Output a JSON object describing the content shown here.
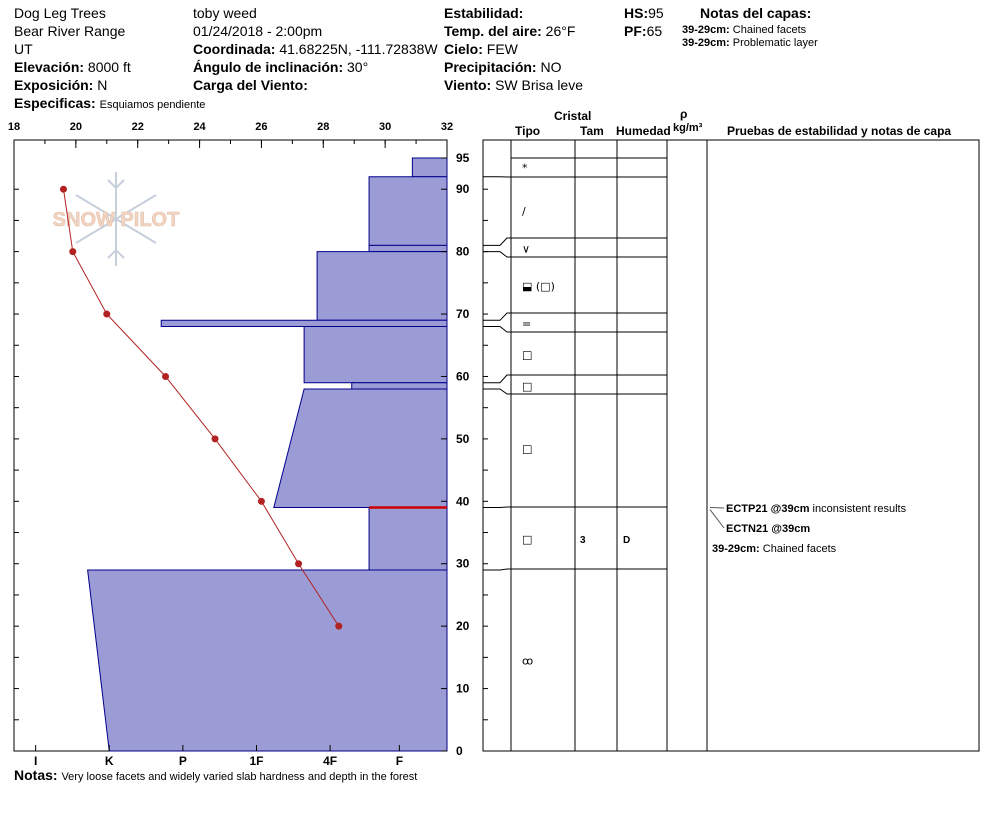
{
  "header": {
    "location": "Dog Leg Trees",
    "range": "Bear River Range",
    "state": "UT",
    "elevation_label": "Elevación:",
    "elevation_value": "8000 ft",
    "aspect_label": "Exposición:",
    "aspect_value": "N",
    "specifics_label": "Especificas:",
    "specifics_value": "Esquiamos pendiente",
    "observer": "toby weed",
    "datetime": "01/24/2018 - 2:00pm",
    "coord_label": "Coordinada:",
    "coord_value": "41.68225N, -111.72838W",
    "incline_label": "Ángulo de inclinación:",
    "incline_value": "30°",
    "wind_load_label": "Carga del Viento:",
    "wind_load_value": "",
    "stability_label": "Estabilidad:",
    "stability_value": "",
    "air_temp_label": "Temp. del aire:",
    "air_temp_value": "26°F",
    "sky_label": "Cielo:",
    "sky_value": "FEW",
    "precip_label": "Precipitación:",
    "precip_value": "NO",
    "wind_label": "Viento:",
    "wind_value": "SW Brisa leve",
    "hs_label": "HS:",
    "hs_value": "95",
    "pf_label": "PF:",
    "pf_value": "65",
    "layer_notes_title": "Notas del capas:",
    "layer_notes": [
      {
        "range": "39-29cm:",
        "text": "Chained facets"
      },
      {
        "range": "39-29cm:",
        "text": "Problematic layer"
      }
    ]
  },
  "logo_text": "SNOW PILOT",
  "columns": {
    "cristal": "Cristal",
    "tipo": "Tipo",
    "tam": "Tam",
    "humedad": "Humedad",
    "rho": "ρ",
    "density_unit": "kg/m³",
    "tests": "Pruebas de estabilidad y notas de capa"
  },
  "notes_label": "Notas:",
  "notes_value": "Very loose facets and widely varied slab hardness and depth in the forest",
  "colors": {
    "hardness_fill": "#9b9bd6",
    "hardness_stroke": "#00008b",
    "temp_line": "#b22222",
    "weak_layer": "#cc0000",
    "test_arrow": "#555555"
  },
  "chart_data": {
    "type": "snow-profile",
    "temp_axis": {
      "ticks": [
        "18",
        "20",
        "22",
        "24",
        "26",
        "28",
        "30",
        "32"
      ],
      "range": [
        18,
        32
      ]
    },
    "depth_axis": {
      "ticks": [
        "0",
        "10",
        "20",
        "30",
        "40",
        "50",
        "60",
        "70",
        "80",
        "90",
        "95"
      ],
      "range": [
        0,
        95
      ]
    },
    "hardness_axis": {
      "ticks": [
        "I",
        "K",
        "P",
        "1F",
        "4F",
        "F"
      ]
    },
    "temperature_profile": [
      {
        "depth": 90,
        "temp": 19.6
      },
      {
        "depth": 80,
        "temp": 19.9
      },
      {
        "depth": 70,
        "temp": 21.0
      },
      {
        "depth": 60,
        "temp": 22.9
      },
      {
        "depth": 50,
        "temp": 24.5
      },
      {
        "depth": 40,
        "temp": 26.0
      },
      {
        "depth": 30,
        "temp": 27.2
      },
      {
        "depth": 20,
        "temp": 28.5
      }
    ],
    "hardness_layers": [
      {
        "top": 95,
        "bottom": 92,
        "h_top": 0.92,
        "h_bottom": 0.92
      },
      {
        "top": 92,
        "bottom": 81,
        "h_top": 0.82,
        "h_bottom": 0.82
      },
      {
        "top": 81,
        "bottom": 80,
        "h_top": 0.82,
        "h_bottom": 0.82
      },
      {
        "top": 80,
        "bottom": 69,
        "h_top": 0.7,
        "h_bottom": 0.7
      },
      {
        "top": 69,
        "bottom": 68,
        "h_top": 0.34,
        "h_bottom": 0.34
      },
      {
        "top": 68,
        "bottom": 59,
        "h_top": 0.67,
        "h_bottom": 0.67
      },
      {
        "top": 59,
        "bottom": 58,
        "h_top": 0.78,
        "h_bottom": 0.78
      },
      {
        "top": 58,
        "bottom": 39,
        "h_top": 0.67,
        "h_bottom": 0.6
      },
      {
        "top": 39,
        "bottom": 29,
        "h_top": 0.82,
        "h_bottom": 0.82
      },
      {
        "top": 29,
        "bottom": 0,
        "h_top": 0.17,
        "h_bottom": 0.22
      }
    ],
    "weak_layer_depth": 39,
    "grain_layers": [
      {
        "top": 95,
        "bottom": 92,
        "type": "*",
        "size": "",
        "moisture": ""
      },
      {
        "top": 92,
        "bottom": 81,
        "type": "/",
        "size": "",
        "moisture": ""
      },
      {
        "top": 81,
        "bottom": 80,
        "type": "∨",
        "size": "",
        "moisture": ""
      },
      {
        "top": 80,
        "bottom": 69,
        "type": "⬓ (□)",
        "size": "",
        "moisture": ""
      },
      {
        "top": 69,
        "bottom": 68,
        "type": "=",
        "size": "",
        "moisture": ""
      },
      {
        "top": 68,
        "bottom": 59,
        "type": "□",
        "size": "",
        "moisture": ""
      },
      {
        "top": 59,
        "bottom": 58,
        "type": "□",
        "size": "",
        "moisture": ""
      },
      {
        "top": 58,
        "bottom": 39,
        "type": "□",
        "size": "",
        "moisture": ""
      },
      {
        "top": 39,
        "bottom": 29,
        "type": "□",
        "size": "3",
        "moisture": "D"
      },
      {
        "top": 29,
        "bottom": 0,
        "type": "ꝏ",
        "size": "",
        "moisture": ""
      }
    ],
    "stability_tests": [
      {
        "code": "ECTP21 @39cm",
        "comment": "inconsistent results"
      },
      {
        "code": "ECTN21 @39cm",
        "comment": ""
      }
    ],
    "layer_comment": {
      "range": "39-29cm:",
      "text": "Chained facets"
    }
  }
}
